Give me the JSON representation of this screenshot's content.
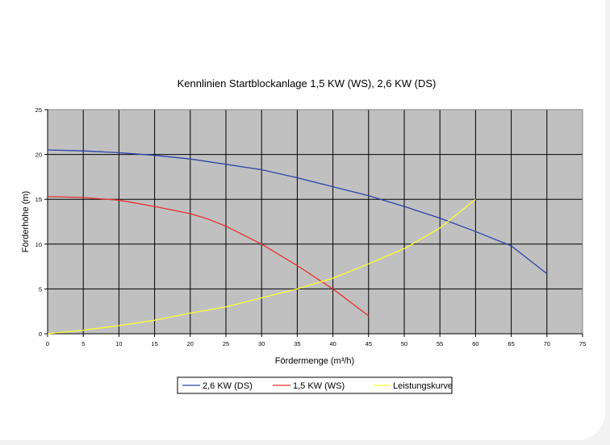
{
  "chart_data": {
    "type": "line",
    "title": "Kennlinien Startblockanlage 1,5 KW (WS), 2,6 KW (DS)",
    "xlabel": "Fördermenge (m³/h)",
    "ylabel": "Förderhöhe (m)",
    "xlim": [
      0,
      75
    ],
    "ylim": [
      0,
      25
    ],
    "xticks": [
      0,
      5,
      10,
      15,
      20,
      25,
      30,
      35,
      40,
      45,
      50,
      55,
      60,
      65,
      70,
      75
    ],
    "yticks": [
      0,
      5,
      10,
      15,
      20,
      25
    ],
    "grid": true,
    "legend_position": "bottom",
    "plot_background": "#c0c0c0",
    "series": [
      {
        "name": "2,6 KW (DS)",
        "color": "#2a44a8",
        "x": [
          0,
          5,
          10,
          15,
          20,
          25,
          30,
          35,
          40,
          45,
          50,
          55,
          60,
          65,
          70
        ],
        "y": [
          20.5,
          20.4,
          20.2,
          19.9,
          19.5,
          18.9,
          18.3,
          17.4,
          16.4,
          15.4,
          14.2,
          12.9,
          11.4,
          9.8,
          6.7
        ]
      },
      {
        "name": "1,5 KW (WS)",
        "color": "#e8302a",
        "x": [
          0,
          5,
          10,
          15,
          20,
          22.5,
          25,
          30,
          35,
          40,
          45
        ],
        "y": [
          15.3,
          15.2,
          14.9,
          14.2,
          13.4,
          12.8,
          12.0,
          10.0,
          7.6,
          5.0,
          2.0
        ]
      },
      {
        "name": "Leistungskurve",
        "color": "#ffff33",
        "x": [
          0,
          5,
          10,
          15,
          20,
          25,
          30,
          35,
          40,
          45,
          50,
          55,
          60
        ],
        "y": [
          0.0,
          0.4,
          0.9,
          1.5,
          2.3,
          3.0,
          4.0,
          5.0,
          6.2,
          7.8,
          9.5,
          11.8,
          15.0
        ]
      }
    ]
  }
}
